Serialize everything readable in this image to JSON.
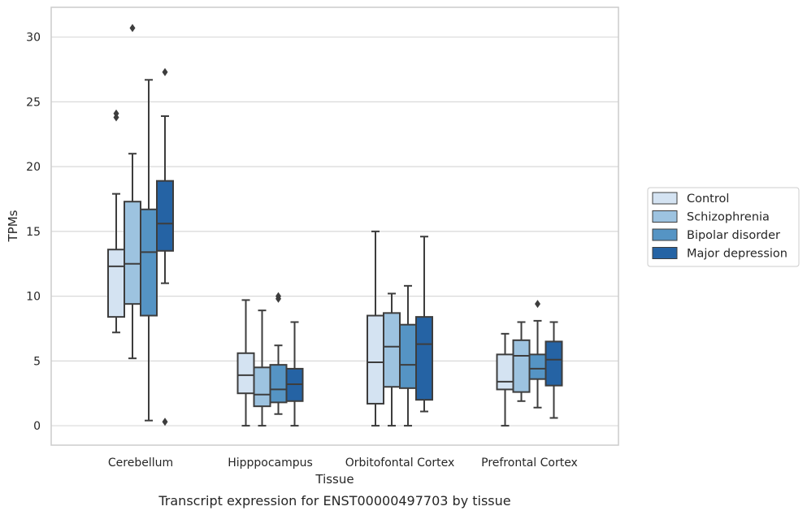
{
  "chart_data": {
    "type": "boxplot",
    "title": "",
    "caption": "Transcript expression for ENST00000497703 by tissue",
    "xlabel": "Tissue",
    "ylabel": "TPMs",
    "ylim": [
      -1.5,
      32.3
    ],
    "yticks": [
      0,
      5,
      10,
      15,
      20,
      25,
      30
    ],
    "grid": "horizontal",
    "legend_position": "right",
    "categories": [
      "Cerebellum",
      "Hipppocampus",
      "Orbitofontal Cortex",
      "Prefrontal Cortex"
    ],
    "series": [
      {
        "name": "Control",
        "color": "#d4e3f2",
        "boxes": [
          {
            "whislo": 7.2,
            "q1": 8.4,
            "med": 12.3,
            "q3": 13.6,
            "whishi": 17.9,
            "fliers": [
              23.8,
              24.1
            ]
          },
          {
            "whislo": 0.0,
            "q1": 2.5,
            "med": 3.9,
            "q3": 5.6,
            "whishi": 9.7,
            "fliers": []
          },
          {
            "whislo": 0.0,
            "q1": 1.7,
            "med": 4.9,
            "q3": 8.5,
            "whishi": 15.0,
            "fliers": []
          },
          {
            "whislo": 0.0,
            "q1": 2.8,
            "med": 3.4,
            "q3": 5.5,
            "whishi": 7.1,
            "fliers": []
          }
        ]
      },
      {
        "name": "Schizophrenia",
        "color": "#9dc3e0",
        "boxes": [
          {
            "whislo": 5.2,
            "q1": 9.4,
            "med": 12.5,
            "q3": 17.3,
            "whishi": 21.0,
            "fliers": [
              30.7
            ]
          },
          {
            "whislo": 0.0,
            "q1": 1.5,
            "med": 2.4,
            "q3": 4.5,
            "whishi": 8.9,
            "fliers": []
          },
          {
            "whislo": 0.0,
            "q1": 3.0,
            "med": 6.1,
            "q3": 8.7,
            "whishi": 10.2,
            "fliers": []
          },
          {
            "whislo": 1.9,
            "q1": 2.6,
            "med": 5.4,
            "q3": 6.6,
            "whishi": 8.0,
            "fliers": []
          }
        ]
      },
      {
        "name": "Bipolar disorder",
        "color": "#5594c4",
        "boxes": [
          {
            "whislo": 0.4,
            "q1": 8.5,
            "med": 13.4,
            "q3": 16.7,
            "whishi": 26.7,
            "fliers": []
          },
          {
            "whislo": 0.9,
            "q1": 1.8,
            "med": 2.8,
            "q3": 4.7,
            "whishi": 6.2,
            "fliers": [
              9.8,
              10.0
            ]
          },
          {
            "whislo": 0.0,
            "q1": 2.9,
            "med": 4.7,
            "q3": 7.8,
            "whishi": 10.8,
            "fliers": []
          },
          {
            "whislo": 1.4,
            "q1": 3.6,
            "med": 4.4,
            "q3": 5.5,
            "whishi": 8.1,
            "fliers": [
              9.4
            ]
          }
        ]
      },
      {
        "name": "Major depression",
        "color": "#2563a4",
        "boxes": [
          {
            "whislo": 11.0,
            "q1": 13.5,
            "med": 15.6,
            "q3": 18.9,
            "whishi": 23.9,
            "fliers": [
              0.3,
              27.3
            ]
          },
          {
            "whislo": 0.0,
            "q1": 1.9,
            "med": 3.2,
            "q3": 4.4,
            "whishi": 8.0,
            "fliers": []
          },
          {
            "whislo": 1.1,
            "q1": 2.0,
            "med": 6.3,
            "q3": 8.4,
            "whishi": 14.6,
            "fliers": []
          },
          {
            "whislo": 0.6,
            "q1": 3.1,
            "med": 5.1,
            "q3": 6.5,
            "whishi": 8.0,
            "fliers": []
          }
        ]
      }
    ]
  },
  "colors": {
    "grid": "#d9d9d9",
    "frame": "#cccccc",
    "box_edge": "#3d3d3d",
    "legend_border": "#cccccc"
  }
}
